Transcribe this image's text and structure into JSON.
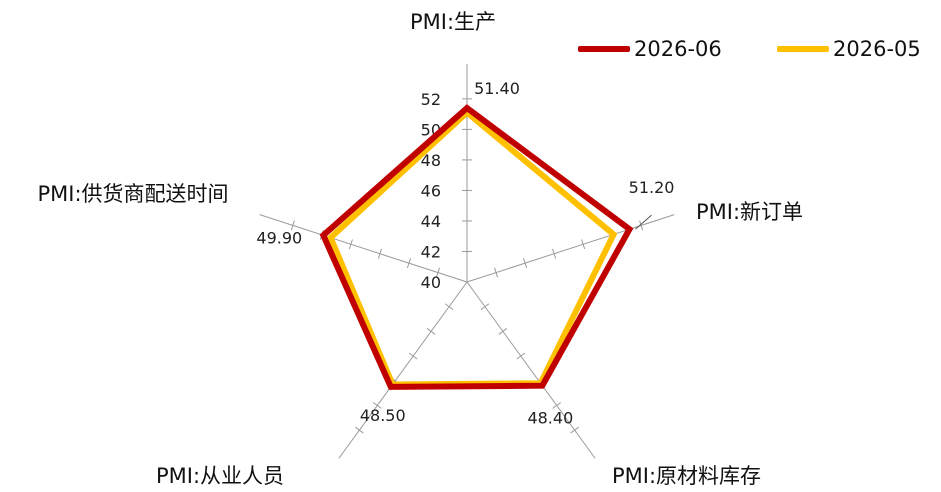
{
  "chart_data": {
    "type": "radar",
    "axes": [
      "PMI:生产",
      "PMI:新订单",
      "PMI:原材料库存",
      "PMI:从业人员",
      "PMI:供货商配送时间"
    ],
    "rlim": [
      40,
      52
    ],
    "ticks": [
      "40",
      "42",
      "44",
      "46",
      "48",
      "50",
      "52"
    ],
    "series": [
      {
        "name": "2026-06",
        "color": "#C00000",
        "values": [
          51.4,
          51.2,
          48.4,
          48.5,
          49.9
        ]
      },
      {
        "name": "2026-05",
        "color": "#FFC000",
        "values": [
          51.1,
          50.1,
          48.2,
          48.3,
          49.4
        ]
      }
    ],
    "data_labels": [
      "51.40",
      "51.20",
      "48.40",
      "48.50",
      "49.90"
    ],
    "grid": "axis-spokes-only",
    "legend_position": "top-right"
  }
}
